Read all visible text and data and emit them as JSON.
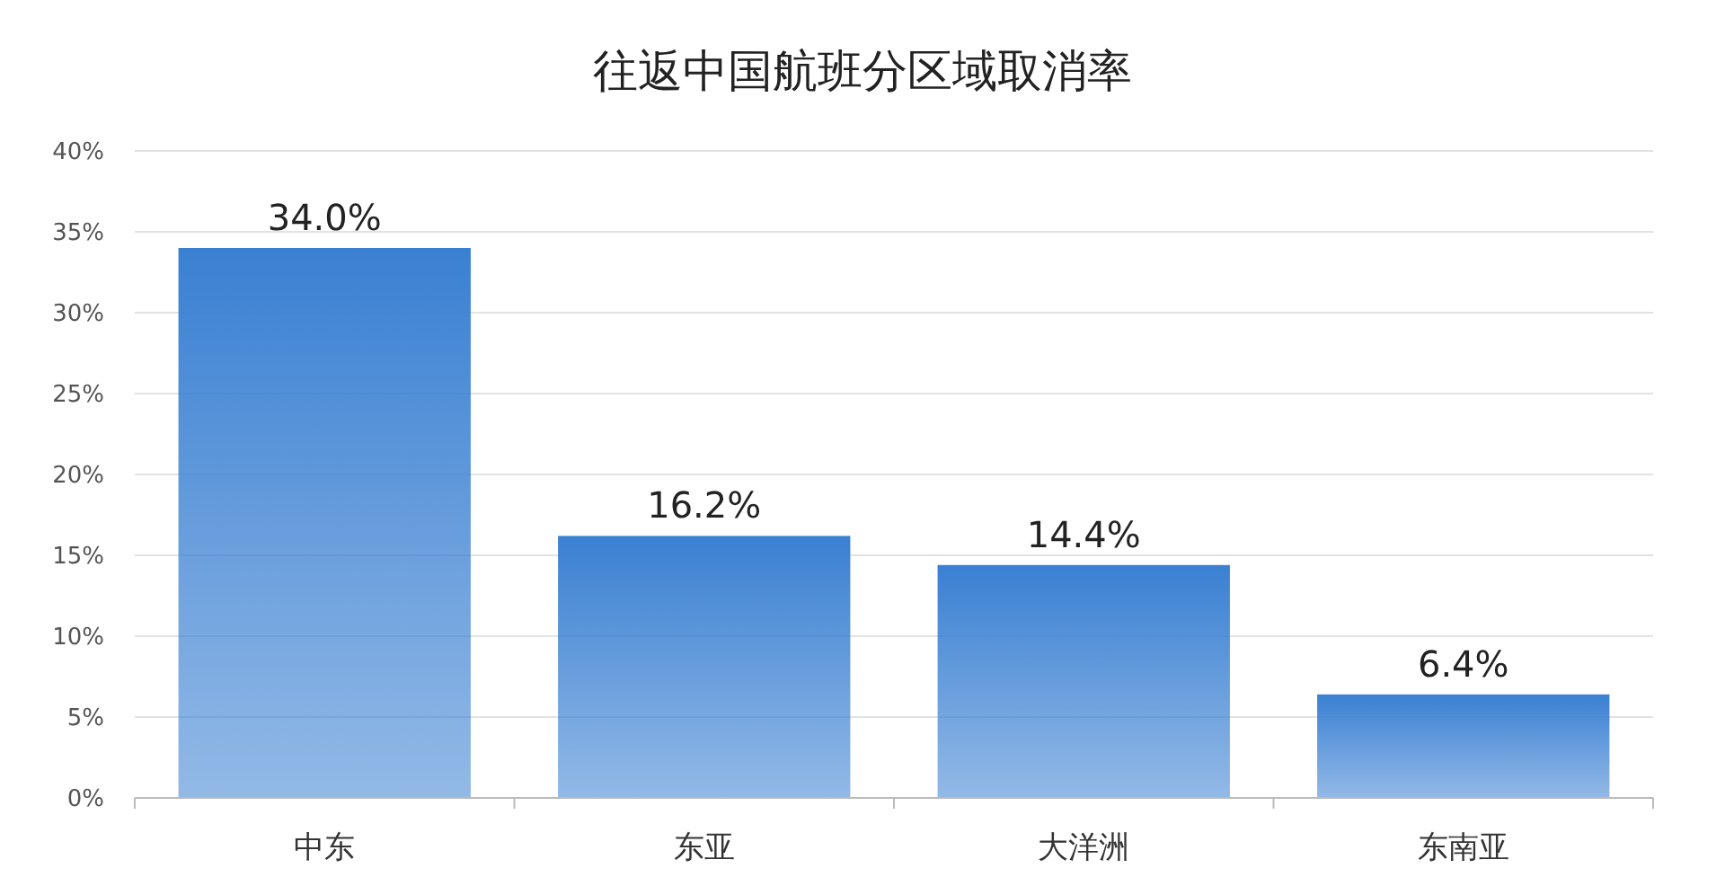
{
  "chart_data": {
    "type": "bar",
    "title": "往返中国航班分区域取消率",
    "categories": [
      "中东",
      "东亚",
      "大洋洲",
      "东南亚"
    ],
    "values": [
      34.0,
      16.2,
      14.4,
      6.4
    ],
    "value_labels": [
      "34.0%",
      "16.2%",
      "14.4%",
      "6.4%"
    ],
    "color": "#3a80d2",
    "ylim": [
      0,
      40
    ],
    "yticks": [
      {
        "value": 0,
        "label": "0%"
      },
      {
        "value": 5,
        "label": "5%"
      },
      {
        "value": 10,
        "label": "10%"
      },
      {
        "value": 15,
        "label": "15%"
      },
      {
        "value": 20,
        "label": "20%"
      },
      {
        "value": 25,
        "label": "25%"
      },
      {
        "value": 30,
        "label": "30%"
      },
      {
        "value": 35,
        "label": "35%"
      },
      {
        "value": 40,
        "label": "40%"
      }
    ],
    "grid": "y"
  }
}
